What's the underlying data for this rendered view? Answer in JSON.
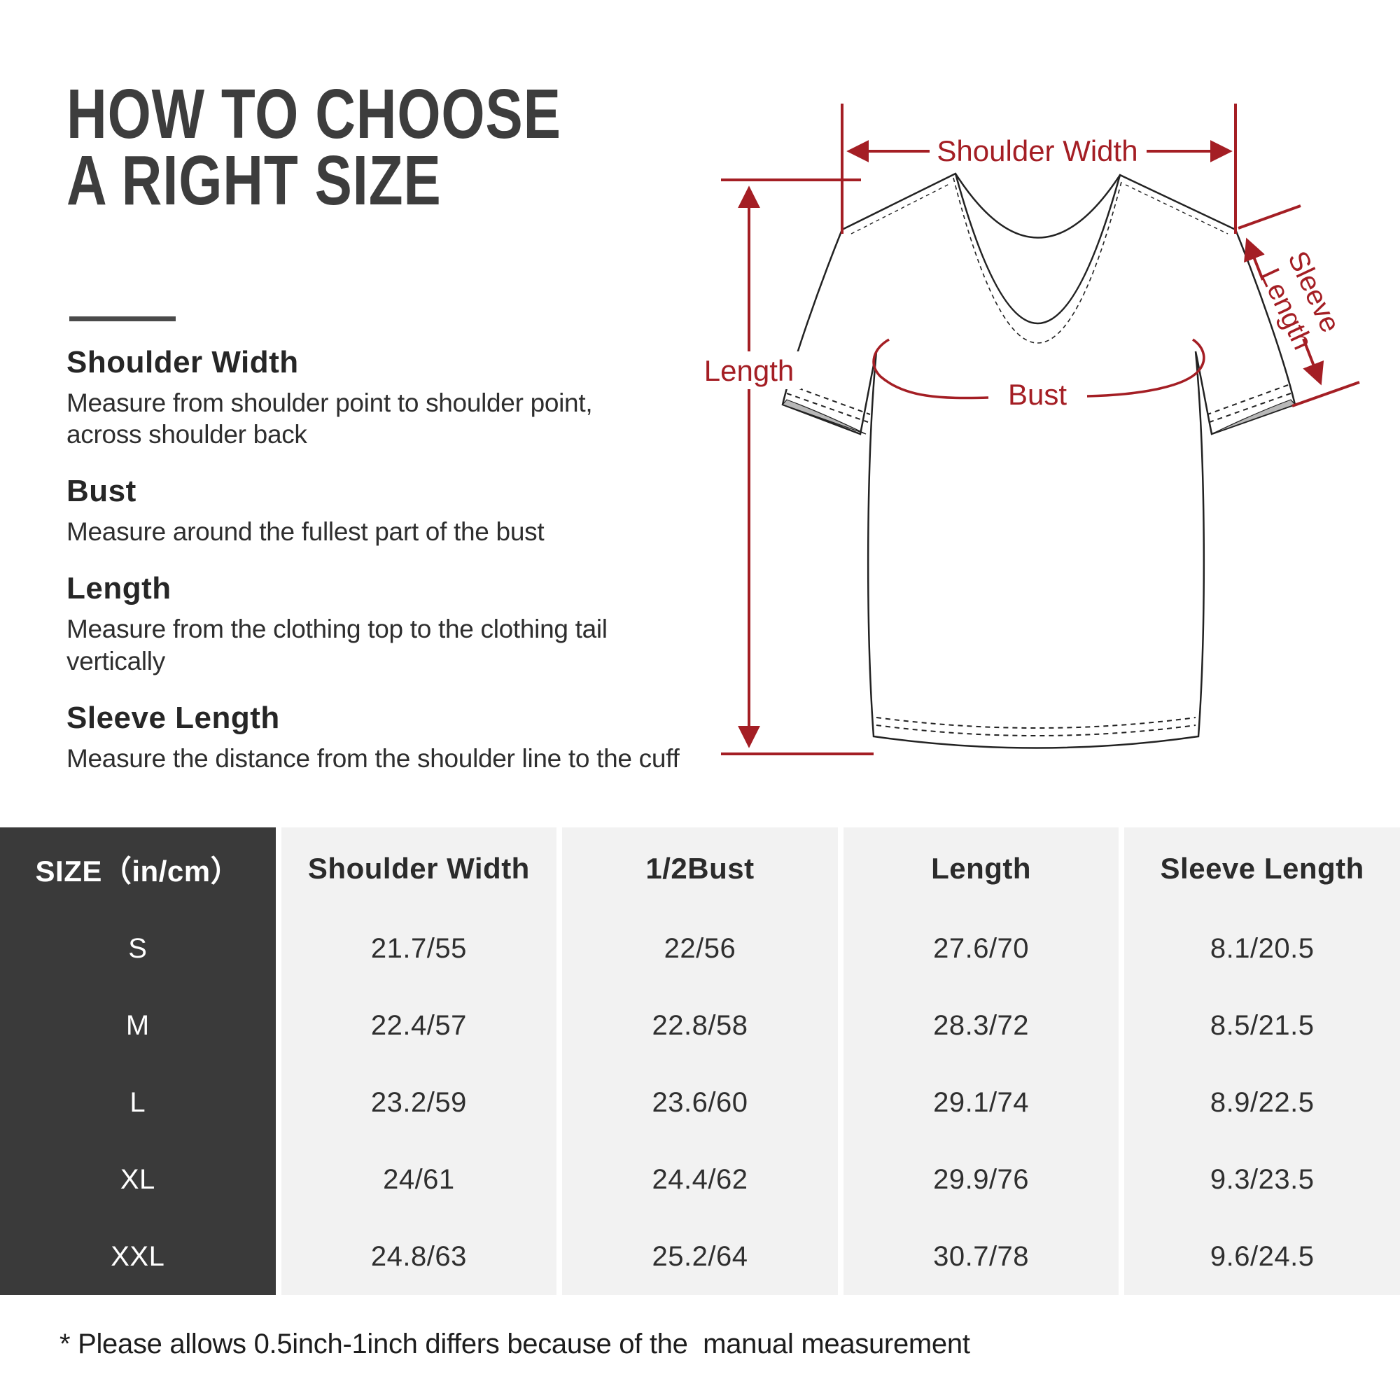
{
  "title": {
    "line1": "HOW TO CHOOSE",
    "line2": "A RIGHT SIZE"
  },
  "sections": [
    {
      "heading": "Shoulder Width",
      "description": "Measure from shoulder point to shoulder point,\nacross shoulder back"
    },
    {
      "heading": "Bust",
      "description": "Measure around the fullest part of the bust"
    },
    {
      "heading": "Length",
      "description": "Measure from the clothing top to the clothing tail\nvertically"
    },
    {
      "heading": "Sleeve Length",
      "description": "Measure the distance from the shoulder line to the cuff"
    }
  ],
  "diagram": {
    "annotation_color": "#a41e24",
    "labels": {
      "shoulder_width": "Shoulder Width",
      "length": "Length",
      "bust": "Bust",
      "sleeve_line1": "Sleeve",
      "sleeve_line2": "Length"
    }
  },
  "table": {
    "size_header": "SIZE（in/cm）",
    "columns": [
      "Shoulder Width",
      "1/2Bust",
      "Length",
      "Sleeve Length"
    ],
    "rows": [
      {
        "size": "S",
        "values": [
          "21.7/55",
          "22/56",
          "27.6/70",
          "8.1/20.5"
        ]
      },
      {
        "size": "M",
        "values": [
          "22.4/57",
          "22.8/58",
          "28.3/72",
          "8.5/21.5"
        ]
      },
      {
        "size": "L",
        "values": [
          "23.2/59",
          "23.6/60",
          "29.1/74",
          "8.9/22.5"
        ]
      },
      {
        "size": "XL",
        "values": [
          "24/61",
          "24.4/62",
          "29.9/76",
          "9.3/23.5"
        ]
      },
      {
        "size": "XXL",
        "values": [
          "24.8/63",
          "25.2/64",
          "30.7/78",
          "9.6/24.5"
        ]
      }
    ],
    "colors": {
      "dark_bg": "#3a3a3a",
      "cell_bg": "#f2f2f2"
    }
  },
  "footnote": "* Please allows 0.5inch-1inch differs because of the  manual measurement"
}
